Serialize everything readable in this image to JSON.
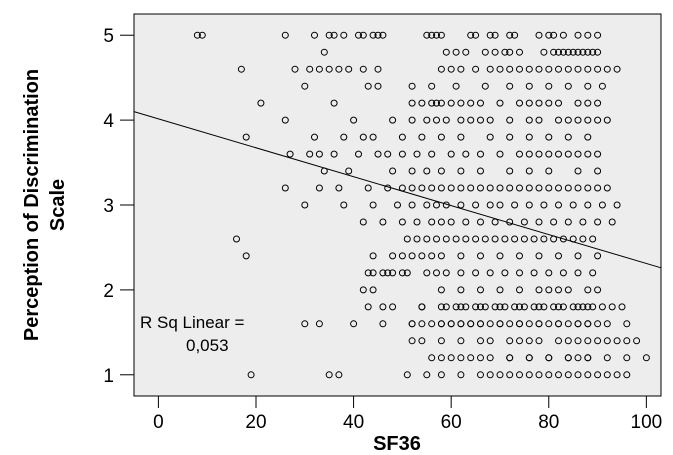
{
  "chart_data": {
    "type": "scatter",
    "title": "",
    "xlabel": "SF36",
    "ylabel_line1": "Perception of Discrimination",
    "ylabel_line2": "Scale",
    "xlim": [
      -5,
      103
    ],
    "ylim": [
      0.75,
      5.25
    ],
    "xticks": [
      0,
      20,
      40,
      60,
      80,
      100
    ],
    "yticks": [
      1,
      2,
      3,
      4,
      5
    ],
    "grid": false,
    "plot_background": "#ededed",
    "marker": "open-circle",
    "fit_line": {
      "x": [
        -5,
        103
      ],
      "y": [
        4.1,
        2.26
      ]
    },
    "annotation_line1": "R Sq Linear =",
    "annotation_line2": "0,053",
    "points": {
      "x": [
        8,
        9,
        26,
        32,
        35,
        36,
        38,
        41,
        42,
        44,
        45,
        46,
        55,
        56,
        57,
        58,
        64,
        65,
        68,
        69,
        72,
        73,
        78,
        80,
        81,
        83,
        86,
        88,
        90,
        34,
        59,
        61,
        63,
        67,
        69,
        71,
        72,
        74,
        79,
        81,
        82,
        83,
        84,
        85,
        86,
        87,
        88,
        89,
        90,
        17,
        28,
        31,
        33,
        35,
        37,
        39,
        42,
        45,
        58,
        60,
        62,
        65,
        68,
        70,
        72,
        74,
        76,
        78,
        80,
        82,
        84,
        86,
        88,
        90,
        92,
        94,
        30,
        43,
        45,
        52,
        56,
        61,
        67,
        72,
        76,
        80,
        84,
        88,
        91,
        21,
        36,
        52,
        54,
        56,
        57,
        58,
        60,
        62,
        64,
        66,
        70,
        74,
        76,
        78,
        80,
        82,
        86,
        88,
        90,
        26,
        40,
        48,
        52,
        55,
        57,
        59,
        62,
        64,
        66,
        68,
        72,
        76,
        78,
        82,
        84,
        86,
        88,
        90,
        92,
        18,
        32,
        38,
        42,
        44,
        50,
        54,
        58,
        62,
        68,
        72,
        76,
        80,
        84,
        88,
        27,
        31,
        33,
        36,
        41,
        45,
        47,
        50,
        53,
        56,
        60,
        63,
        66,
        70,
        74,
        76,
        78,
        80,
        82,
        84,
        86,
        88,
        90,
        34,
        39,
        48,
        52,
        55,
        58,
        62,
        66,
        72,
        76,
        80,
        86,
        90,
        26,
        33,
        37,
        43,
        47,
        50,
        52,
        54,
        56,
        58,
        60,
        62,
        64,
        66,
        68,
        70,
        72,
        74,
        76,
        78,
        80,
        82,
        84,
        86,
        88,
        90,
        92,
        30,
        38,
        44,
        49,
        52,
        55,
        57,
        59,
        62,
        65,
        68,
        70,
        73,
        76,
        79,
        82,
        85,
        88,
        91,
        94,
        42,
        46,
        50,
        53,
        56,
        58,
        60,
        63,
        66,
        69,
        72,
        75,
        78,
        81,
        84,
        87,
        90,
        93,
        51,
        53,
        55,
        57,
        59,
        61,
        63,
        65,
        67,
        69,
        71,
        73,
        75,
        77,
        79,
        81,
        83,
        85,
        87,
        89,
        16,
        44,
        48,
        50,
        52,
        54,
        56,
        58,
        62,
        66,
        70,
        74,
        78,
        82,
        86,
        90,
        18,
        43,
        47,
        51,
        55,
        57,
        59,
        62,
        65,
        68,
        71,
        74,
        77,
        80,
        83,
        86,
        89,
        44,
        46,
        48,
        50,
        58,
        62,
        66,
        70,
        74,
        78,
        80,
        82,
        84,
        88,
        90,
        42,
        44,
        46,
        48,
        54,
        58,
        62,
        66,
        70,
        74,
        78,
        82,
        86,
        88,
        52,
        54,
        58,
        62,
        66,
        70,
        74,
        78,
        82,
        86,
        90,
        58,
        60,
        62,
        64,
        66,
        70,
        74,
        78,
        82,
        86,
        88,
        43,
        54,
        59,
        61,
        63,
        65,
        67,
        69,
        71,
        73,
        75,
        77,
        79,
        81,
        83,
        85,
        87,
        89,
        91,
        93,
        95,
        30,
        33,
        40,
        46,
        52,
        56,
        60,
        64,
        68,
        72,
        76,
        80,
        84,
        88,
        92,
        96,
        54,
        58,
        62,
        66,
        68,
        72,
        74,
        76,
        78,
        82,
        84,
        86,
        88,
        90,
        92,
        94,
        96,
        98,
        52,
        58,
        62,
        66,
        72,
        76,
        80,
        84,
        88,
        92,
        96,
        100,
        56,
        60,
        64,
        68,
        72,
        76,
        80,
        84,
        86,
        88,
        19,
        35,
        37,
        51,
        55,
        58,
        62,
        66,
        68,
        70,
        72,
        74,
        76,
        78,
        80,
        82,
        84,
        86,
        88,
        90,
        92,
        94,
        96
      ],
      "y": [
        5,
        5,
        5,
        5,
        5,
        5,
        5,
        5,
        5,
        5,
        5,
        5,
        5,
        5,
        5,
        5,
        5,
        5,
        5,
        5,
        5,
        5,
        5,
        5,
        5,
        5,
        5,
        5,
        5,
        4.8,
        4.8,
        4.8,
        4.8,
        4.8,
        4.8,
        4.8,
        4.8,
        4.8,
        4.8,
        4.8,
        4.8,
        4.8,
        4.8,
        4.8,
        4.8,
        4.8,
        4.8,
        4.8,
        4.8,
        4.6,
        4.6,
        4.6,
        4.6,
        4.6,
        4.6,
        4.6,
        4.6,
        4.6,
        4.6,
        4.6,
        4.6,
        4.6,
        4.6,
        4.6,
        4.6,
        4.6,
        4.6,
        4.6,
        4.6,
        4.6,
        4.6,
        4.6,
        4.6,
        4.6,
        4.6,
        4.6,
        4.4,
        4.4,
        4.4,
        4.4,
        4.4,
        4.4,
        4.4,
        4.4,
        4.4,
        4.4,
        4.4,
        4.4,
        4.4,
        4.2,
        4.2,
        4.2,
        4.2,
        4.2,
        4.2,
        4.2,
        4.2,
        4.2,
        4.2,
        4.2,
        4.2,
        4.2,
        4.2,
        4.2,
        4.2,
        4.2,
        4.2,
        4.2,
        4.2,
        4,
        4,
        4,
        4,
        4,
        4,
        4,
        4,
        4,
        4,
        4,
        4,
        4,
        4,
        4,
        4,
        4,
        4,
        4,
        4,
        3.8,
        3.8,
        3.8,
        3.8,
        3.8,
        3.8,
        3.8,
        3.8,
        3.8,
        3.8,
        3.8,
        3.8,
        3.8,
        3.8,
        3.8,
        3.6,
        3.6,
        3.6,
        3.6,
        3.6,
        3.6,
        3.6,
        3.6,
        3.6,
        3.6,
        3.6,
        3.6,
        3.6,
        3.6,
        3.6,
        3.6,
        3.6,
        3.6,
        3.6,
        3.6,
        3.6,
        3.6,
        3.6,
        3.4,
        3.4,
        3.4,
        3.4,
        3.4,
        3.4,
        3.4,
        3.4,
        3.4,
        3.4,
        3.4,
        3.4,
        3.4,
        3.2,
        3.2,
        3.2,
        3.2,
        3.2,
        3.2,
        3.2,
        3.2,
        3.2,
        3.2,
        3.2,
        3.2,
        3.2,
        3.2,
        3.2,
        3.2,
        3.2,
        3.2,
        3.2,
        3.2,
        3.2,
        3.2,
        3.2,
        3.2,
        3.2,
        3.2,
        3.2,
        3,
        3,
        3,
        3,
        3,
        3,
        3,
        3,
        3,
        3,
        3,
        3,
        3,
        3,
        3,
        3,
        3,
        3,
        3,
        3,
        2.8,
        2.8,
        2.8,
        2.8,
        2.8,
        2.8,
        2.8,
        2.8,
        2.8,
        2.8,
        2.8,
        2.8,
        2.8,
        2.8,
        2.8,
        2.8,
        2.8,
        2.8,
        2.6,
        2.6,
        2.6,
        2.6,
        2.6,
        2.6,
        2.6,
        2.6,
        2.6,
        2.6,
        2.6,
        2.6,
        2.6,
        2.6,
        2.6,
        2.6,
        2.6,
        2.6,
        2.6,
        2.6,
        2.6,
        2.4,
        2.4,
        2.4,
        2.4,
        2.4,
        2.4,
        2.4,
        2.4,
        2.4,
        2.4,
        2.4,
        2.4,
        2.4,
        2.4,
        2.4,
        2.4,
        2.2,
        2.2,
        2.2,
        2.2,
        2.2,
        2.2,
        2.2,
        2.2,
        2.2,
        2.2,
        2.2,
        2.2,
        2.2,
        2.2,
        2.2,
        2.2,
        2.2,
        2.2,
        2.2,
        2.2,
        2,
        2,
        2,
        2,
        2,
        2,
        2,
        2,
        2,
        2,
        2,
        2,
        2,
        1.8,
        1.8,
        1.8,
        1.8,
        1.8,
        1.8,
        1.8,
        1.8,
        1.8,
        1.8,
        1.8,
        1.8,
        1.6,
        1.6,
        1.6,
        1.6,
        1.6,
        1.6,
        1.6,
        1.6,
        1.6,
        1.6,
        1.6,
        1.6,
        1.6,
        1.6,
        1.6,
        1.6,
        1.6,
        1.6,
        1.6,
        1.6,
        1.6,
        1.6,
        1.8,
        1.8,
        1.8,
        1.8,
        1.8,
        1.8,
        1.8,
        1.8,
        1.8,
        1.8,
        1.8,
        1.8,
        1.8,
        1.8,
        1.8,
        1.8,
        1.8,
        1.8,
        1.8,
        1.8,
        1.8,
        1.6,
        1.6,
        1.6,
        1.6,
        1.6,
        1.6,
        1.6,
        1.6,
        1.6,
        1.6,
        1.6,
        1.6,
        1.6,
        1.6,
        1.6,
        1.6,
        1.4,
        1.4,
        1.4,
        1.4,
        1.4,
        1.4,
        1.4,
        1.4,
        1.4,
        1.4,
        1.4,
        1.4,
        1.4,
        1.4,
        1.4,
        1.4,
        1.4,
        1.4,
        1.4,
        1.2,
        1.2,
        1.2,
        1.2,
        1.2,
        1.2,
        1.2,
        1.2,
        1.2,
        1.2,
        1.2,
        1.2,
        1.2,
        1.2,
        1.2,
        1.2,
        1.2,
        1.2,
        1.2,
        1.2,
        1.2,
        1,
        1,
        1,
        1,
        1,
        1,
        1,
        1,
        1,
        1,
        1,
        1,
        1,
        1,
        1,
        1,
        1,
        1,
        1,
        1,
        1,
        1,
        1
      ]
    }
  }
}
